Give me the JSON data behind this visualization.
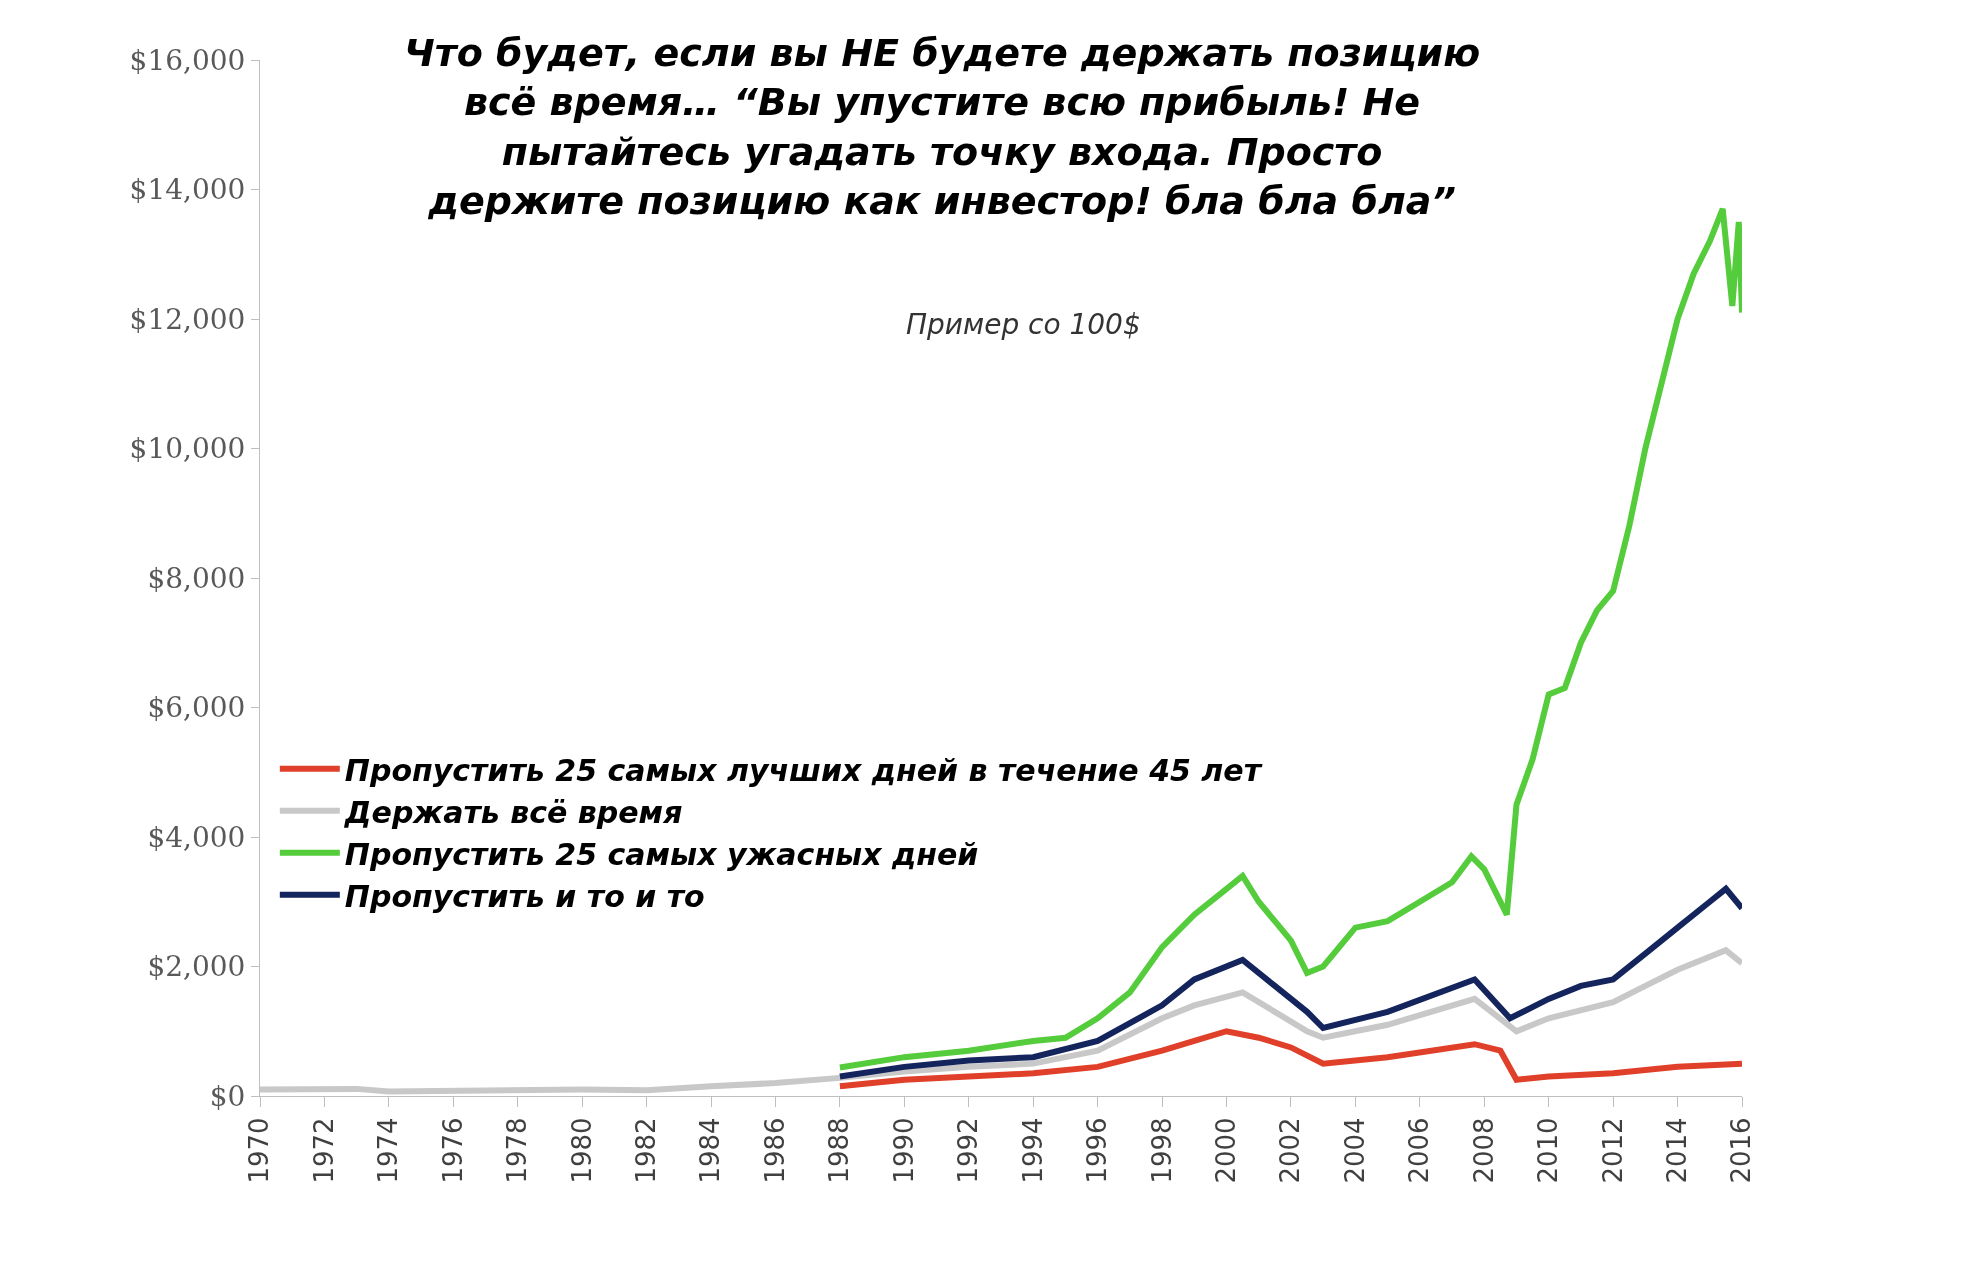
{
  "chart_data": {
    "type": "line",
    "title": "Что будет, если вы НЕ будете держать позицию\nвсё время… “Вы упустите всю прибыль! Не\nпытайтесь угадать точку входа. Просто\nдержите позицию как инвестор! бла бла бла”",
    "subtitle": "Пример со 100$",
    "xlim": [
      1970,
      2016
    ],
    "xticks": [
      1970,
      1972,
      1974,
      1976,
      1978,
      1980,
      1982,
      1984,
      1986,
      1988,
      1990,
      1992,
      1994,
      1996,
      1998,
      2000,
      2002,
      2004,
      2006,
      2008,
      2010,
      2012,
      2014,
      2016
    ],
    "ylim": [
      0,
      16000
    ],
    "yticks": [
      {
        "value": 0,
        "label": "$0"
      },
      {
        "value": 2000,
        "label": "$2,000"
      },
      {
        "value": 4000,
        "label": "$4,000"
      },
      {
        "value": 6000,
        "label": "$6,000"
      },
      {
        "value": 8000,
        "label": "$8,000"
      },
      {
        "value": 10000,
        "label": "$10,000"
      },
      {
        "value": 12000,
        "label": "$12,000"
      },
      {
        "value": 14000,
        "label": "$14,000"
      },
      {
        "value": 16000,
        "label": "$16,000"
      }
    ],
    "legend": "left",
    "line_style": "solid",
    "marker": "none",
    "series": [
      {
        "name": "Пропустить 25 самых лучших дней в течение 45 лет",
        "color": "#e0402a",
        "x": [
          1988,
          1990,
          1992,
          1994,
          1996,
          1998,
          1999,
          2000,
          2001,
          2002,
          2003,
          2005,
          2007.7,
          2008.5,
          2009,
          2010,
          2012,
          2014,
          2016
        ],
        "values": [
          150,
          250,
          300,
          350,
          450,
          700,
          850,
          1000,
          900,
          750,
          500,
          600,
          800,
          700,
          250,
          300,
          350,
          450,
          500
        ]
      },
      {
        "name": "Держать всё время",
        "color": "#c8c8c8",
        "x": [
          1970,
          1973,
          1974,
          1980,
          1982,
          1984,
          1986,
          1988,
          1990,
          1992,
          1994,
          1996,
          1998,
          1999,
          2000.5,
          2001.5,
          2002.5,
          2003,
          2005,
          2007.7,
          2009,
          2010,
          2012,
          2013,
          2014,
          2015.5,
          2016
        ],
        "values": [
          100,
          110,
          70,
          100,
          90,
          150,
          200,
          280,
          380,
          450,
          500,
          700,
          1200,
          1400,
          1600,
          1300,
          1000,
          900,
          1100,
          1500,
          1000,
          1200,
          1450,
          1700,
          1950,
          2250,
          2050
        ]
      },
      {
        "name": "Пропустить 25 самых ужасных дней",
        "color": "#55cc3c",
        "x": [
          1988,
          1990,
          1992,
          1994,
          1995,
          1996,
          1997,
          1998,
          1999,
          2000,
          2000.5,
          2001,
          2001.5,
          2002,
          2002.5,
          2003,
          2004,
          2005,
          2006,
          2007,
          2007.6,
          2008,
          2008.7,
          2009,
          2009.5,
          2010,
          2010.5,
          2011,
          2011.5,
          2012,
          2012.5,
          2013,
          2013.5,
          2014,
          2014.5,
          2015,
          2015.4,
          2015.7,
          2015.9,
          2016
        ],
        "values": [
          440,
          600,
          700,
          850,
          900,
          1200,
          1600,
          2300,
          2800,
          3200,
          3400,
          3000,
          2700,
          2400,
          1900,
          2000,
          2600,
          2700,
          3000,
          3300,
          3700,
          3500,
          2800,
          4500,
          5200,
          6200,
          6300,
          7000,
          7500,
          7800,
          8800,
          10000,
          11000,
          12000,
          12700,
          13200,
          13700,
          12200,
          13500,
          12100
        ]
      },
      {
        "name": "Пропустить и то и то",
        "color": "#14245c",
        "x": [
          1988,
          1990,
          1992,
          1994,
          1996,
          1998,
          1999,
          2000.5,
          2001.5,
          2002.5,
          2003,
          2005,
          2007.7,
          2008.8,
          2010,
          2011,
          2012,
          2013,
          2014,
          2015,
          2015.5,
          2016
        ],
        "values": [
          300,
          450,
          550,
          600,
          850,
          1400,
          1800,
          2100,
          1700,
          1300,
          1050,
          1300,
          1800,
          1200,
          1500,
          1700,
          1800,
          2200,
          2600,
          3000,
          3200,
          2900
        ]
      }
    ]
  }
}
